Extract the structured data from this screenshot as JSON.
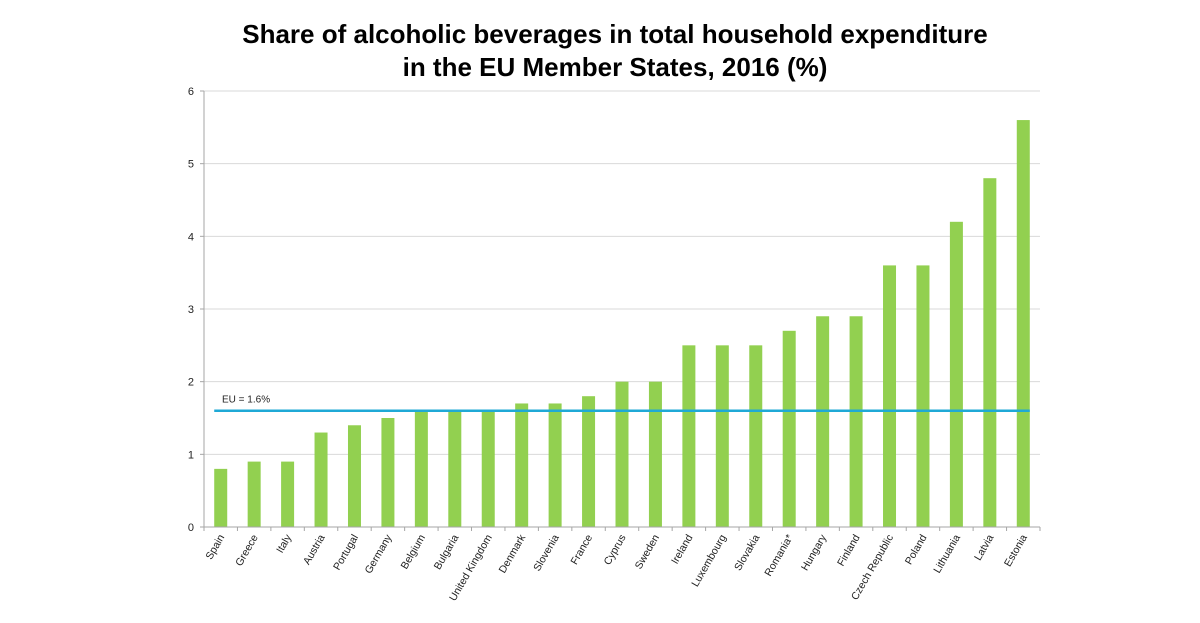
{
  "chart_data": {
    "type": "bar",
    "title_lines": [
      "Share of alcoholic beverages in total household expenditure",
      "in the EU Member States, 2016 (%)"
    ],
    "xlabel": "",
    "ylabel": "",
    "ylim": [
      0,
      6
    ],
    "yticks": [
      "0",
      "1",
      "2",
      "3",
      "4",
      "5",
      "6"
    ],
    "grid": true,
    "categories": [
      "Spain",
      "Greece",
      "Italy",
      "Austria",
      "Portugal",
      "Germany",
      "Belgium",
      "Bulgaria",
      "United Kingdom",
      "Denmark",
      "Slovenia",
      "France",
      "Cyprus",
      "Sweden",
      "Ireland",
      "Luxembourg",
      "Slovakia",
      "Romania*",
      "Hungary",
      "Finland",
      "Czech Republic",
      "Poland",
      "Lithuania",
      "Latvia",
      "Estonia"
    ],
    "values": [
      0.8,
      0.9,
      0.9,
      1.3,
      1.4,
      1.5,
      1.6,
      1.6,
      1.6,
      1.7,
      1.7,
      1.8,
      2.0,
      2.0,
      2.5,
      2.5,
      2.5,
      2.7,
      2.9,
      2.9,
      3.6,
      3.6,
      4.2,
      4.8,
      5.6
    ],
    "reference_line": {
      "label": "EU = 1.6%",
      "value": 1.6
    },
    "colors": {
      "bar": "#92d050",
      "reference_line": "#1fa9d6",
      "grid": "#d9d9d9",
      "axis": "#a6a6a6"
    }
  }
}
